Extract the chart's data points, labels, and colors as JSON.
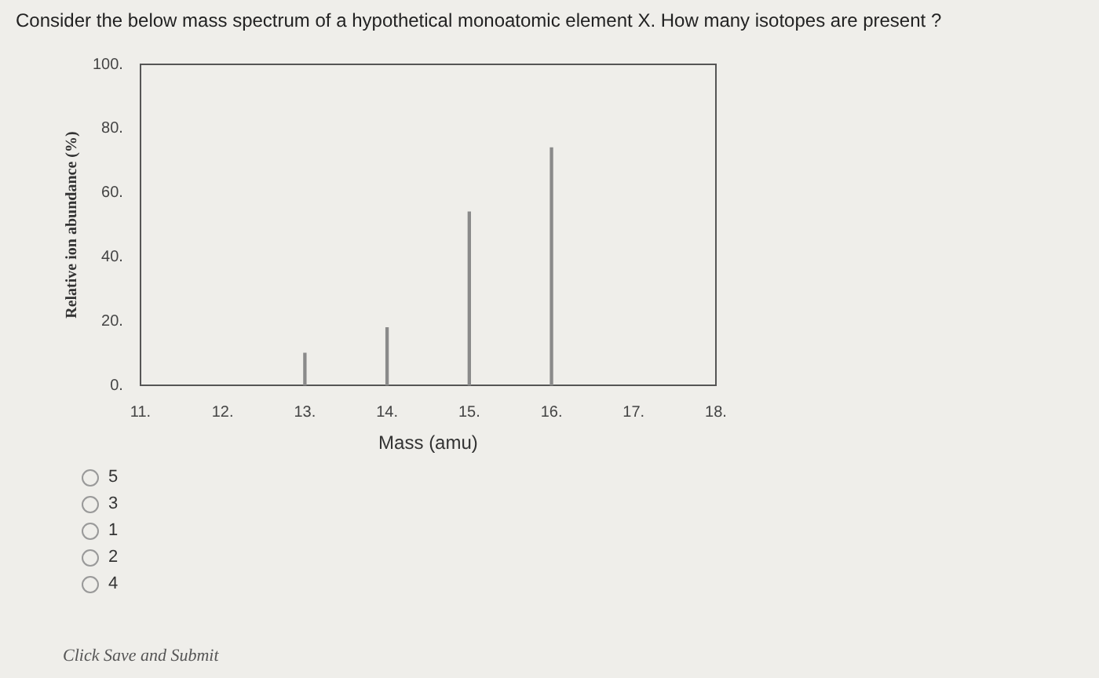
{
  "chart_data": {
    "type": "bar",
    "title": "Consider the below mass spectrum of a hypothetical monoatomic element X. How many isotopes are present ?",
    "xlabel": "Mass (amu)",
    "ylabel": "Relative ion abundance (%)",
    "x": [
      13,
      14,
      15,
      16
    ],
    "values": [
      10,
      18,
      54,
      74
    ],
    "color": "#8a8a8a",
    "xlim": [
      11,
      18
    ],
    "xticks": [
      {
        "value": 11,
        "label": "11."
      },
      {
        "value": 12,
        "label": "12."
      },
      {
        "value": 13,
        "label": "13."
      },
      {
        "value": 14,
        "label": "14."
      },
      {
        "value": 15,
        "label": "15."
      },
      {
        "value": 16,
        "label": "16."
      },
      {
        "value": 17,
        "label": "17."
      },
      {
        "value": 18,
        "label": "18."
      }
    ],
    "ylim": [
      0,
      100
    ],
    "yticks": [
      {
        "value": 0,
        "label": "0."
      },
      {
        "value": 20,
        "label": "20."
      },
      {
        "value": 40,
        "label": "40."
      },
      {
        "value": 60,
        "label": "60."
      },
      {
        "value": 80,
        "label": "80."
      },
      {
        "value": 100,
        "label": "100."
      }
    ],
    "grid": false,
    "legend": false,
    "annotations": [
      "5",
      "3",
      "1",
      "2",
      "4",
      "Click Save and Submit"
    ]
  }
}
